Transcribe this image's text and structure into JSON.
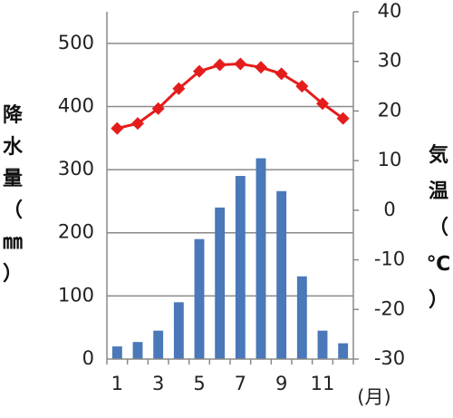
{
  "chart_data": {
    "type": "bar+line",
    "categories": [
      1,
      2,
      3,
      4,
      5,
      6,
      7,
      8,
      9,
      10,
      11,
      12
    ],
    "x_tick_labels": [
      "1",
      "3",
      "5",
      "7",
      "9",
      "11"
    ],
    "x_tick_positions": [
      1,
      3,
      5,
      7,
      9,
      11
    ],
    "x_unit_label": "(月)",
    "series": [
      {
        "name": "降水量",
        "kind": "bar",
        "axis": "left",
        "color": "#4a78b8",
        "values": [
          20,
          27,
          45,
          90,
          190,
          240,
          290,
          318,
          266,
          131,
          45,
          25
        ]
      },
      {
        "name": "気温",
        "kind": "line",
        "axis": "right",
        "color": "#e51c1c",
        "marker": "diamond",
        "values": [
          16.5,
          17.5,
          20.5,
          24.5,
          28.0,
          29.3,
          29.5,
          28.8,
          27.5,
          25.0,
          21.5,
          18.5
        ]
      }
    ],
    "left_axis": {
      "label_chars": [
        "降",
        "水",
        "量",
        "（",
        "㎜",
        "）"
      ],
      "ylim": [
        0,
        550
      ],
      "ticks": [
        0,
        100,
        200,
        300,
        400,
        500
      ]
    },
    "right_axis": {
      "label_chars": [
        "気",
        "温",
        "（",
        "℃",
        "）"
      ],
      "ylim": [
        -30,
        40
      ],
      "ticks": [
        -30,
        -20,
        -10,
        0,
        10,
        20,
        30,
        40
      ]
    },
    "grid": true
  }
}
